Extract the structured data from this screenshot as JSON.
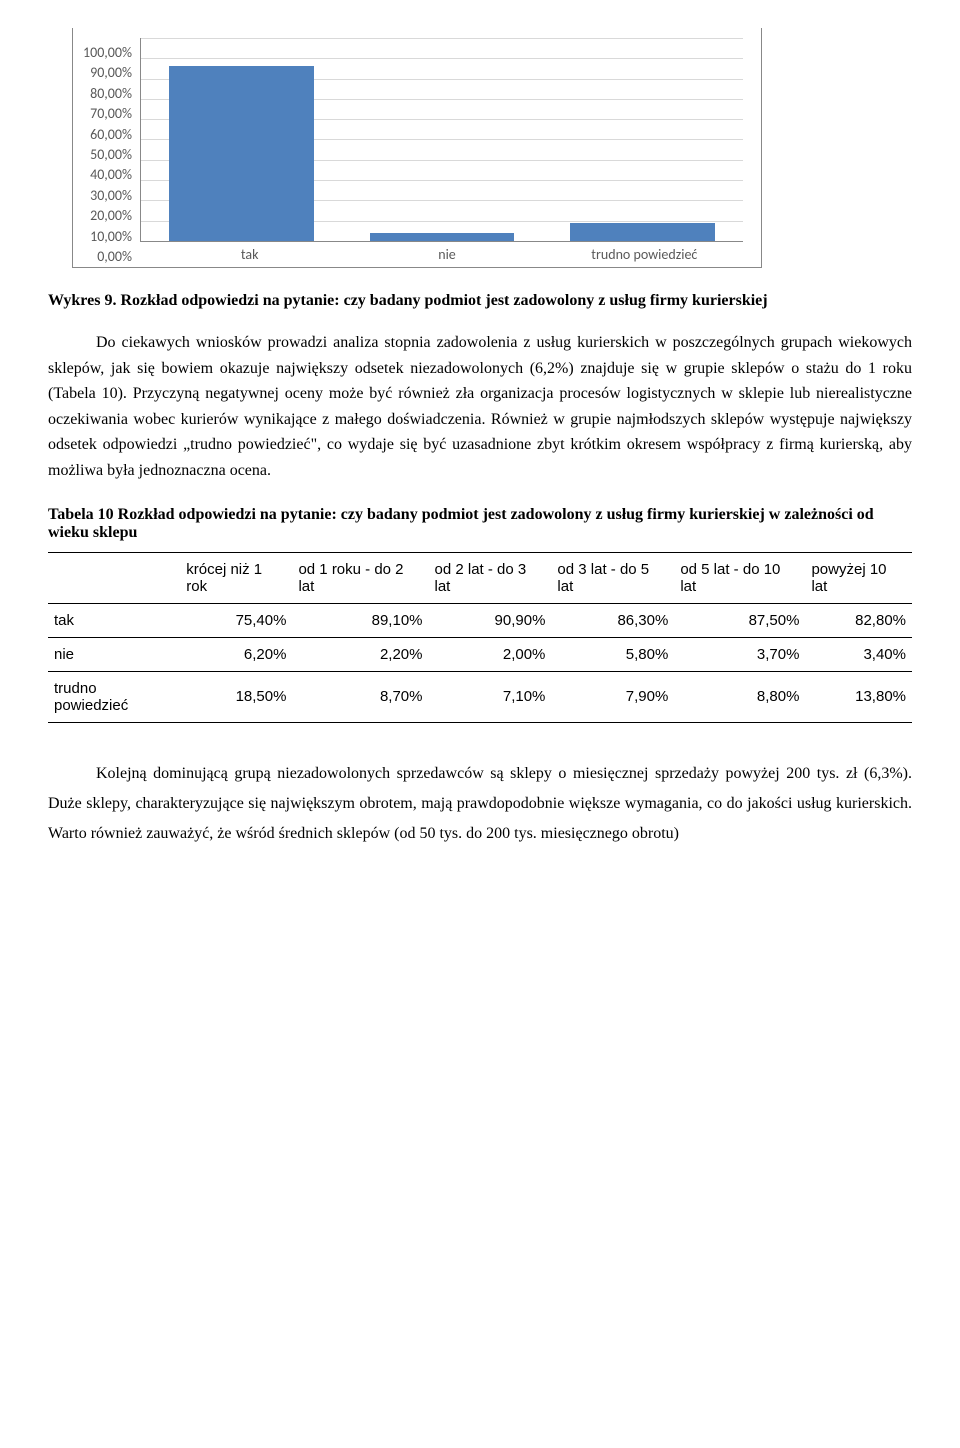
{
  "chart": {
    "ymax": 100,
    "ytick_step": 10,
    "yticks": [
      "0,00%",
      "10,00%",
      "20,00%",
      "30,00%",
      "40,00%",
      "50,00%",
      "60,00%",
      "70,00%",
      "80,00%",
      "90,00%",
      "100,00%"
    ],
    "categories": [
      "tak",
      "nie",
      "trudno powiedzieć"
    ],
    "values": [
      86,
      4,
      9
    ],
    "bar_color": "#4f81bd",
    "grid_color": "#d9d9d9",
    "axis_color": "#888888",
    "label_color": "#595959",
    "label_fontsize": 14
  },
  "caption": "Wykres 9. Rozkład odpowiedzi na pytanie: czy badany podmiot jest zadowolony z usług firmy kurierskiej",
  "para1": "Do ciekawych wniosków prowadzi analiza stopnia zadowolenia z usług kurierskich w poszczególnych grupach wiekowych sklepów, jak się bowiem okazuje największy odsetek niezadowolonych (6,2%) znajduje się w grupie sklepów o stażu do 1 roku (Tabela 10). Przyczyną negatywnej oceny może być również zła organizacja procesów logistycznych w sklepie lub nierealistyczne oczekiwania wobec kurierów wynikające z małego doświadczenia. Również w grupie najmłodszych sklepów występuje największy odsetek odpowiedzi „trudno powiedzieć\", co wydaje się być uzasadnione zbyt krótkim okresem współpracy z firmą kurierską, aby możliwa była jednoznaczna ocena.",
  "tableCaption": "Tabela 10 Rozkład odpowiedzi na pytanie: czy badany podmiot jest zadowolony z usług firmy kurierskiej w zależności od wieku sklepu",
  "table": {
    "columns": [
      "",
      "krócej niż 1 rok",
      "od 1 roku - do 2 lat",
      "od 2 lat - do 3 lat",
      "od 3 lat - do 5 lat",
      "od 5 lat - do 10 lat",
      "powyżej 10 lat"
    ],
    "rows": [
      [
        "tak",
        "75,40%",
        "89,10%",
        "90,90%",
        "86,30%",
        "87,50%",
        "82,80%"
      ],
      [
        "nie",
        "6,20%",
        "2,20%",
        "2,00%",
        "5,80%",
        "3,70%",
        "3,40%"
      ],
      [
        "trudno powiedzieć",
        "18,50%",
        "8,70%",
        "7,10%",
        "7,90%",
        "8,80%",
        "13,80%"
      ]
    ]
  },
  "para2": "Kolejną dominującą grupą niezadowolonych sprzedawców są sklepy o miesięcznej sprzedaży powyżej 200 tys. zł (6,3%). Duże sklepy, charakteryzujące się największym obrotem, mają prawdopodobnie większe wymagania, co do jakości usług kurierskich. Warto również zauważyć, że wśród średnich sklepów (od 50 tys. do 200 tys. miesięcznego obrotu)"
}
